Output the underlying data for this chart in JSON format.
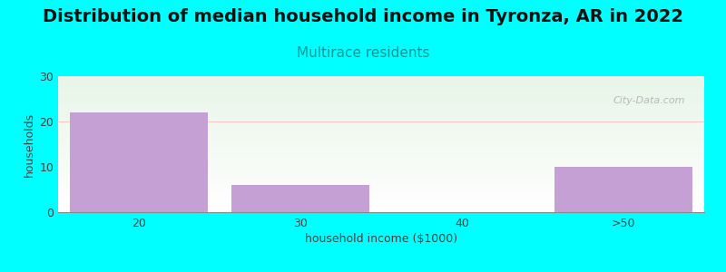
{
  "title": "Distribution of median household income in Tyronza, AR in 2022",
  "subtitle": "Multirace residents",
  "xlabel": "household income ($1000)",
  "ylabel": "households",
  "categories": [
    "20",
    "30",
    "40",
    ">50"
  ],
  "values": [
    22,
    6,
    0,
    10
  ],
  "bar_color": "#C4A0D4",
  "background_color": "#00FFFF",
  "plot_bg_color_top": "#E8F5E8",
  "plot_bg_color_bottom": "#FFFFFF",
  "ylim": [
    0,
    30
  ],
  "yticks": [
    0,
    10,
    20,
    30
  ],
  "title_fontsize": 14,
  "subtitle_fontsize": 11,
  "subtitle_color": "#009999",
  "axis_label_fontsize": 9,
  "watermark": "City-Data.com"
}
